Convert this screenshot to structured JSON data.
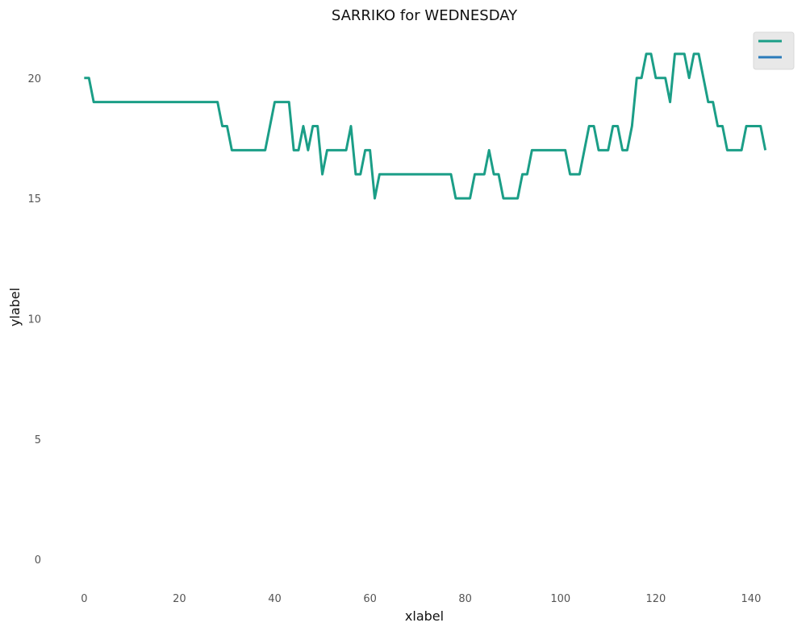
{
  "chart_data": {
    "type": "line",
    "title": "SARRIKO for WEDNESDAY",
    "xlabel": "xlabel",
    "ylabel": "ylabel",
    "xlim": [
      -7,
      150
    ],
    "ylim": [
      -1.2,
      21.9
    ],
    "xticks": [
      0,
      20,
      40,
      60,
      80,
      100,
      120,
      140
    ],
    "yticks": [
      0,
      5,
      10,
      15,
      20
    ],
    "grid": false,
    "legend_position": "top-right",
    "series": [
      {
        "color": "#1b9e87",
        "x": [
          0,
          1,
          2,
          3,
          4,
          5,
          6,
          7,
          8,
          9,
          10,
          11,
          12,
          13,
          14,
          15,
          16,
          17,
          18,
          19,
          20,
          21,
          22,
          23,
          24,
          25,
          26,
          27,
          28,
          29,
          30,
          31,
          32,
          33,
          34,
          35,
          36,
          37,
          38,
          39,
          40,
          41,
          42,
          43,
          44,
          45,
          46,
          47,
          48,
          49,
          50,
          51,
          52,
          53,
          54,
          55,
          56,
          57,
          58,
          59,
          60,
          61,
          62,
          63,
          64,
          65,
          66,
          67,
          68,
          69,
          70,
          71,
          72,
          73,
          74,
          75,
          76,
          77,
          78,
          79,
          80,
          81,
          82,
          83,
          84,
          85,
          86,
          87,
          88,
          89,
          90,
          91,
          92,
          93,
          94,
          95,
          96,
          97,
          98,
          99,
          100,
          101,
          102,
          103,
          104,
          105,
          106,
          107,
          108,
          109,
          110,
          111,
          112,
          113,
          114,
          115,
          116,
          117,
          118,
          119,
          120,
          121,
          122,
          123,
          124,
          125,
          126,
          127,
          128,
          129,
          130,
          131,
          132,
          133,
          134,
          135,
          136,
          137,
          138,
          139,
          140,
          141,
          142,
          143
        ],
        "y": [
          20,
          20,
          19,
          19,
          19,
          19,
          19,
          19,
          19,
          19,
          19,
          19,
          19,
          19,
          19,
          19,
          19,
          19,
          19,
          19,
          19,
          19,
          19,
          19,
          19,
          19,
          19,
          19,
          19,
          18,
          18,
          17,
          17,
          17,
          17,
          17,
          17,
          17,
          17,
          18,
          19,
          19,
          19,
          19,
          17,
          17,
          18,
          17,
          18,
          18,
          16,
          17,
          17,
          17,
          17,
          17,
          18,
          16,
          16,
          17,
          17,
          15,
          16,
          16,
          16,
          16,
          16,
          16,
          16,
          16,
          16,
          16,
          16,
          16,
          16,
          16,
          16,
          16,
          15,
          15,
          15,
          15,
          16,
          16,
          16,
          17,
          16,
          16,
          15,
          15,
          15,
          15,
          16,
          16,
          17,
          17,
          17,
          17,
          17,
          17,
          17,
          17,
          16,
          16,
          16,
          17,
          18,
          18,
          17,
          17,
          17,
          18,
          18,
          17,
          17,
          18,
          20,
          20,
          21,
          21,
          20,
          20,
          20,
          19,
          21,
          21,
          21,
          20,
          21,
          21,
          20,
          19,
          19,
          18,
          18,
          17,
          17,
          17,
          17,
          18,
          18,
          18,
          18,
          17
        ]
      },
      {
        "color": "#2b7bba",
        "x": [],
        "y": []
      }
    ]
  }
}
